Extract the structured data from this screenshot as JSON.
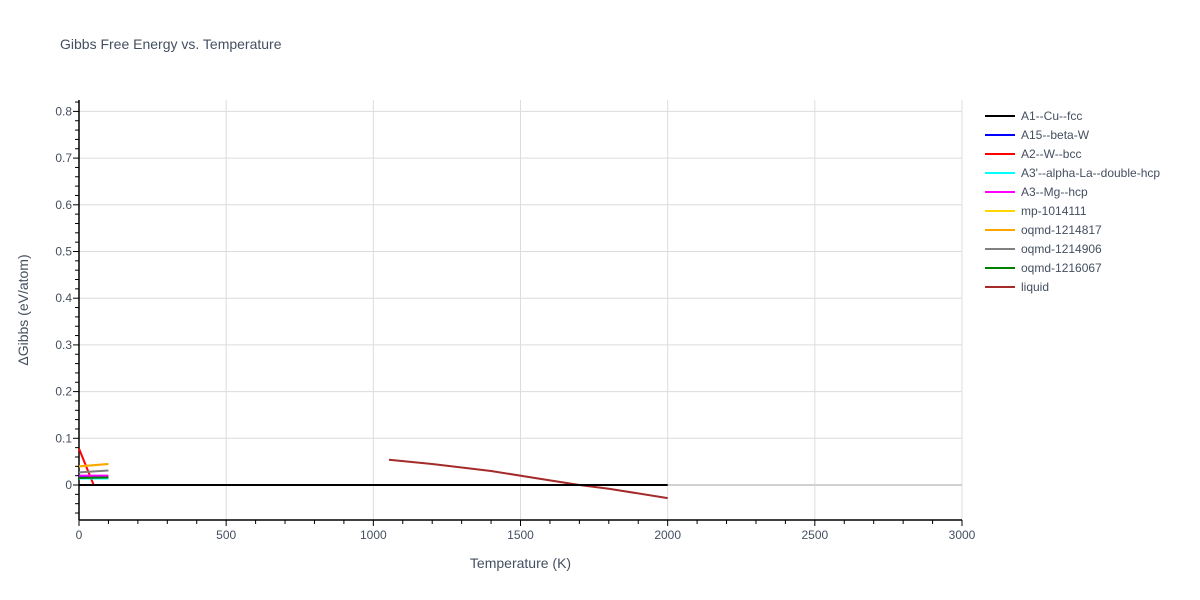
{
  "chart_data": {
    "type": "line",
    "title": "Gibbs Free Energy vs. Temperature",
    "xlabel": "Temperature (K)",
    "ylabel": "ΔGibbs (eV/atom)",
    "xlim": [
      0,
      3000
    ],
    "ylim": [
      -0.075,
      0.825
    ],
    "x_ticks": [
      0,
      500,
      1000,
      1500,
      2000,
      2500,
      3000
    ],
    "y_ticks": [
      0,
      0.1,
      0.2,
      0.3,
      0.4,
      0.5,
      0.6,
      0.7,
      0.8
    ],
    "y_tick_labels": [
      "0",
      "0.1",
      "0.2",
      "0.3",
      "0.4",
      "0.5",
      "0.6",
      "0.7",
      "0.8"
    ],
    "grid": true,
    "legend_position": "right",
    "series": [
      {
        "name": "A1--Cu--fcc",
        "color": "#000000",
        "x": [
          0,
          2000
        ],
        "y": [
          0,
          0
        ]
      },
      {
        "name": "A15--beta-W",
        "color": "#0000ff",
        "x": [
          0,
          100
        ],
        "y": [
          0.018,
          0.018
        ]
      },
      {
        "name": "A2--W--bcc",
        "color": "#ff0000",
        "x": [
          0,
          50
        ],
        "y": [
          0.078,
          0
        ]
      },
      {
        "name": "A3'--alpha-La--double-hcp",
        "color": "#00ffff",
        "x": [
          0,
          100
        ],
        "y": [
          0.014,
          0.014
        ]
      },
      {
        "name": "A3--Mg--hcp",
        "color": "#ff00ff",
        "x": [
          0,
          100
        ],
        "y": [
          0.02,
          0.02
        ]
      },
      {
        "name": "mp-1014111",
        "color": "#ffd700",
        "x": [
          0,
          100
        ],
        "y": [
          0.04,
          0.045
        ]
      },
      {
        "name": "oqmd-1214817",
        "color": "#ffa500",
        "x": [
          0,
          100
        ],
        "y": [
          0.04,
          0.045
        ]
      },
      {
        "name": "oqmd-1214906",
        "color": "#808080",
        "x": [
          0,
          100
        ],
        "y": [
          0.027,
          0.031
        ]
      },
      {
        "name": "oqmd-1216067",
        "color": "#008000",
        "x": [
          0,
          100
        ],
        "y": [
          0.015,
          0.016
        ]
      },
      {
        "name": "liquid",
        "color": "#a52a2a",
        "x": [
          1053,
          1200,
          1400,
          1600,
          1700,
          1800,
          2000
        ],
        "y": [
          0.054,
          0.045,
          0.03,
          0.01,
          0.0,
          -0.008,
          -0.028
        ]
      }
    ]
  }
}
